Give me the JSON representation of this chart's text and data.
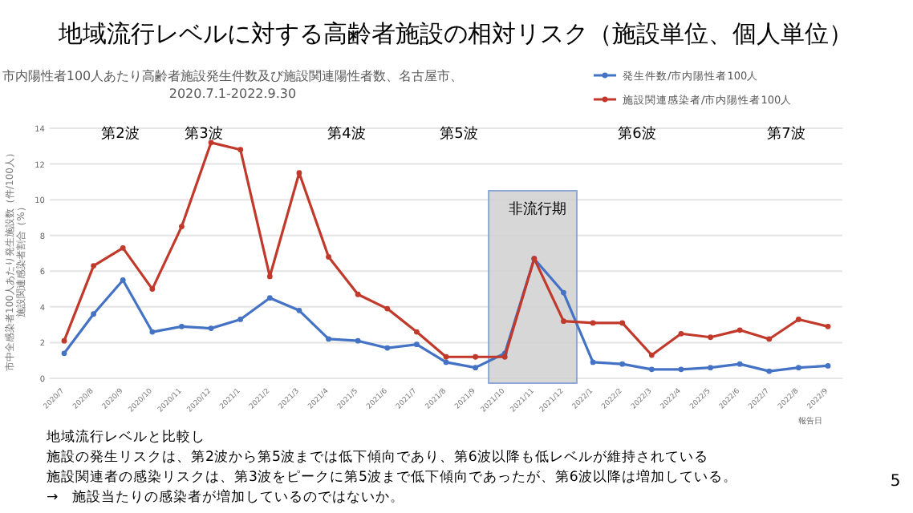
{
  "chart_data": {
    "type": "line",
    "title": "地域流行レベルに対する高齢者施設の相対リスク（施設単位、個人単位）",
    "subtitle": "市内陽性者100人あたり高齢者施設発生件数及び施設関連陽性者数、名古屋市、\n2020.7.1-2022.9.30",
    "xlabel": "報告日",
    "ylabel": "市中全感染者100人あたり発生施設数（件/100人）施設関連感染者割合（%）",
    "categories": [
      "2020/7",
      "2020/8",
      "2020/9",
      "2020/10",
      "2020/11",
      "2020/12",
      "2021/1",
      "2021/2",
      "2021/3",
      "2021/4",
      "2021/5",
      "2021/6",
      "2021/7",
      "2021/8",
      "2021/9",
      "2021/10",
      "2021/11",
      "2021/12",
      "2022/1",
      "2022/2",
      "2022/3",
      "2022/4",
      "2022/5",
      "2022/6",
      "2022/7",
      "2022/8",
      "2022/9"
    ],
    "series": [
      {
        "name": "発生件数/市内陽性者100人",
        "color": "#4472c4",
        "values": [
          1.4,
          3.6,
          5.5,
          2.6,
          2.9,
          2.8,
          3.3,
          4.5,
          3.8,
          2.2,
          2.1,
          1.7,
          1.9,
          0.9,
          0.6,
          1.4,
          6.7,
          4.8,
          0.9,
          0.8,
          0.5,
          0.5,
          0.6,
          0.8,
          0.4,
          0.6,
          0.7
        ]
      },
      {
        "name": "施設関連感染者/市内陽性者100人",
        "color": "#c0392b",
        "values": [
          2.1,
          6.3,
          7.3,
          5.0,
          8.5,
          13.2,
          12.8,
          5.7,
          11.5,
          6.8,
          4.7,
          3.9,
          2.6,
          1.2,
          1.2,
          1.2,
          6.7,
          3.2,
          3.1,
          3.1,
          1.3,
          2.5,
          2.3,
          2.7,
          2.2,
          3.3,
          2.9
        ]
      }
    ],
    "ylim": [
      0,
      14
    ],
    "yticks": [
      0,
      2,
      4,
      6,
      8,
      10,
      12,
      14
    ],
    "grid": "y",
    "legend": "top right",
    "marker": "circle",
    "line_style": "solid",
    "bands": [
      {
        "axis": "x",
        "from": "2021/10",
        "to": "2021/12",
        "label": "非流行期",
        "color": "#d0d0d0"
      }
    ],
    "annotations": [
      "第2波",
      "第3波",
      "第4波",
      "第5波",
      "第6波",
      "第7波",
      "地域流行レベルと比較し",
      "施設の発生リスクは、第2波から第5波までは低下傾向であり、第6波以降も低レベルが維持されている",
      "施設関連者の感染リスクは、第3波をピークに第5波まで低下傾向であったが、第6波以降は増加している。",
      "→　施設当たりの感染者が増加しているのではないか。",
      "5"
    ]
  }
}
